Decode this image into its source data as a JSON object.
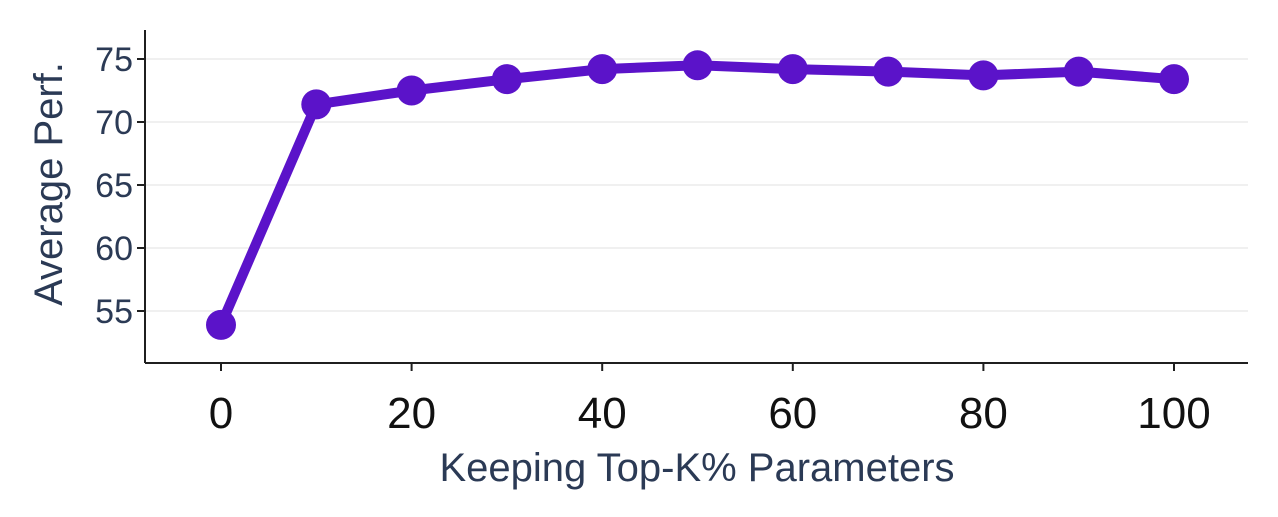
{
  "chart_data": {
    "type": "line",
    "title": "",
    "xlabel": "Keeping Top-K% Parameters",
    "ylabel": "Average Perf.",
    "x": [
      0,
      10,
      20,
      30,
      40,
      50,
      60,
      70,
      80,
      90,
      100
    ],
    "series": [
      {
        "values": [
          53.9,
          71.4,
          72.5,
          73.4,
          74.2,
          74.5,
          74.2,
          74.0,
          73.7,
          74.0,
          73.4
        ],
        "color": "#5b13c9"
      }
    ],
    "xticks": [
      0,
      20,
      40,
      60,
      80,
      100
    ],
    "xtick_labels": [
      "0",
      "20",
      "40",
      "60",
      "80",
      "100"
    ],
    "yticks": [
      55,
      60,
      65,
      70,
      75
    ],
    "ytick_labels": [
      "55",
      "60",
      "65",
      "70",
      "75"
    ],
    "xlim": [
      -8,
      108
    ],
    "ylim": [
      51.5,
      77.5
    ],
    "grid": "horizontal",
    "legend": "none"
  }
}
